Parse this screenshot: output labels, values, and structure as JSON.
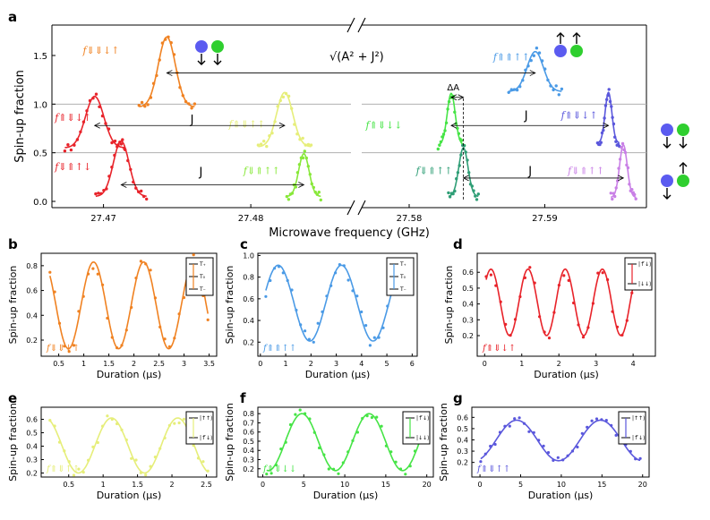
{
  "colors": {
    "red": "#e8232a",
    "orange": "#f08222",
    "yellow": "#e6ee7a",
    "green": "#46e446",
    "teal": "#2f9e76",
    "lime": "#88e83a",
    "blue": "#4a9ae6",
    "indigo": "#5a57dc",
    "violet": "#c980e6",
    "spin_blue": "#5b5bf0",
    "spin_green": "#2fcf2f"
  },
  "panel_labels": {
    "a": "a",
    "b": "b",
    "c": "c",
    "d": "d",
    "e": "e",
    "f": "f",
    "g": "g"
  },
  "chart_data": [
    {
      "panel": "a",
      "type": "scatter",
      "xlabel": "Microwave frequency (GHz)",
      "ylabel": "Spin-up fraction",
      "xlim_left": [
        27.4665,
        27.4868
      ],
      "xlim_right": [
        27.5765,
        27.5975
      ],
      "ylim": [
        -0.03,
        1.75
      ],
      "xticks_left": [
        27.47,
        27.48
      ],
      "xticks_left_labels": [
        "27.47",
        "27.48"
      ],
      "xticks_right": [
        27.58,
        27.59
      ],
      "xticks_right_labels": [
        "27.58",
        "27.59"
      ],
      "yticks": [
        0.0,
        0.5,
        1.0,
        1.5
      ],
      "ytick_labels": [
        "0.0",
        "0.5",
        "1.0",
        "1.5"
      ],
      "hlines": [
        0.5,
        1.0
      ],
      "annotations": {
        "J": "J",
        "sqrtAJ": "√(A² + J²)",
        "deltaA": "ΔA"
      },
      "series": [
        {
          "name": "f⇓⇓↓↑",
          "color": "orange",
          "side": "L",
          "center": 27.4743,
          "width": 0.00082,
          "base": 0.97,
          "amp": 0.72,
          "label_x": 27.4686,
          "label_y": 1.52
        },
        {
          "name": "f⇑⇓↓↑",
          "color": "red",
          "side": "L",
          "center": 27.4694,
          "width": 0.00088,
          "base": 0.55,
          "amp": 0.53,
          "label_x": 27.4667,
          "label_y": 0.83
        },
        {
          "name": "f⇓⇑↑↓",
          "color": "red",
          "side": "L",
          "center": 27.4712,
          "width": 0.00075,
          "base": 0.05,
          "amp": 0.57,
          "label_x": 27.4667,
          "label_y": 0.32
        },
        {
          "name": "f⇑⇓↑↑",
          "color": "yellow",
          "side": "L",
          "center": 27.4823,
          "width": 0.00078,
          "base": 0.56,
          "amp": 0.56,
          "label_x": 27.4785,
          "label_y": 0.76
        },
        {
          "name": "f⇓⇑↑↑",
          "color": "lime",
          "side": "L",
          "center": 27.4836,
          "width": 0.0005,
          "base": 0.05,
          "amp": 0.44,
          "label_x": 27.4795,
          "label_y": 0.28
        },
        {
          "name": "f⇑⇑↑↑",
          "color": "blue",
          "side": "R",
          "center": 27.5893,
          "width": 0.00085,
          "base": 1.13,
          "amp": 0.41,
          "label_x": 27.5862,
          "label_y": 1.45
        },
        {
          "name": "f⇑⇓↓↓",
          "color": "green",
          "side": "R",
          "center": 27.5831,
          "width": 0.00042,
          "base": 0.58,
          "amp": 0.53,
          "label_x": 27.5768,
          "label_y": 0.75
        },
        {
          "name": "f⇓⇑↑↑",
          "color": "teal",
          "side": "R",
          "center": 27.584,
          "width": 0.00048,
          "base": 0.05,
          "amp": 0.5,
          "label_x": 27.5805,
          "label_y": 0.28
        },
        {
          "name": "f⇑⇓↓↑",
          "color": "indigo",
          "side": "R",
          "center": 27.5947,
          "width": 0.00035,
          "base": 0.6,
          "amp": 0.52,
          "label_x": 27.5912,
          "label_y": 0.85
        },
        {
          "name": "f⇓⇑↑↑",
          "color": "violet",
          "side": "R",
          "center": 27.5958,
          "width": 0.0004,
          "base": 0.04,
          "amp": 0.54,
          "label_x": 27.5917,
          "label_y": 0.28
        }
      ]
    },
    {
      "panel": "b",
      "type": "line",
      "xlabel": "Duration (μs)",
      "ylabel": "Spin-up fraction",
      "xlim": [
        0.15,
        3.65
      ],
      "ylim": [
        0.07,
        0.9
      ],
      "xticks": [
        0.5,
        1,
        1.5,
        2,
        2.5,
        3,
        3.5
      ],
      "xtick_labels": [
        "0.5",
        "1",
        "1.5",
        "2",
        "2.5",
        "3",
        "3.5"
      ],
      "yticks": [
        0.2,
        0.4,
        0.6,
        0.8
      ],
      "ytick_labels": [
        "0.2",
        "0.4",
        "0.6",
        "0.8"
      ],
      "color": "orange",
      "freq": 1.0,
      "phase": 0.35,
      "mean": 0.48,
      "amp": 0.35,
      "decay": 0,
      "label": "f⇓⇓↓↑",
      "legend": [
        "T₊",
        "T₀",
        "T₋"
      ]
    },
    {
      "panel": "c",
      "type": "line",
      "xlabel": "Duration (μs)",
      "ylabel": "Spin-up fraction",
      "xlim": [
        -0.1,
        6.2
      ],
      "ylim": [
        0.07,
        1.02
      ],
      "xticks": [
        0,
        1,
        2,
        3,
        4,
        5,
        6
      ],
      "xtick_labels": [
        "0",
        "1",
        "2",
        "3",
        "4",
        "5",
        "6"
      ],
      "yticks": [
        0.2,
        0.4,
        0.6,
        0.8,
        1.0
      ],
      "ytick_labels": [
        "0.2",
        "0.4",
        "0.6",
        "0.8",
        "1.0"
      ],
      "color": "blue",
      "freq": 0.4,
      "phase": -0.2,
      "mean": 0.56,
      "amp": 0.35,
      "decay": 0,
      "label": "f⇑⇑↑↑",
      "legend": [
        "T₊",
        "T₀",
        "T₋"
      ]
    },
    {
      "panel": "d",
      "type": "line",
      "xlabel": "Duration (μs)",
      "ylabel": "Spin-up fraction",
      "xlim": [
        -0.2,
        4.6
      ],
      "ylim": [
        0.07,
        0.72
      ],
      "xticks": [
        0,
        1,
        2,
        3,
        4
      ],
      "xtick_labels": [
        "0",
        "1",
        "2",
        "3",
        "4"
      ],
      "yticks": [
        0.2,
        0.3,
        0.4,
        0.5,
        0.6
      ],
      "ytick_labels": [
        "0.2",
        "0.3",
        "0.4",
        "0.5",
        "0.6"
      ],
      "color": "red",
      "freq": 1.0,
      "phase": 0.5,
      "mean": 0.41,
      "amp": 0.21,
      "decay": 0,
      "label": "f⇑⇓↓↑",
      "legend": [
        "|↑̃↓⟩",
        "|↓↓⟩"
      ]
    },
    {
      "panel": "e",
      "type": "line",
      "xlabel": "Duration (μs)",
      "ylabel": "Spin-up fraction",
      "xlim": [
        0.1,
        2.65
      ],
      "ylim": [
        0.17,
        0.69
      ],
      "xticks": [
        0.5,
        1,
        1.5,
        2,
        2.5
      ],
      "xtick_labels": [
        "0.5",
        "1",
        "1.5",
        "2",
        "2.5"
      ],
      "yticks": [
        0.2,
        0.3,
        0.4,
        0.5,
        0.6
      ],
      "ytick_labels": [
        "0.2",
        "0.3",
        "0.4",
        "0.5",
        "0.6"
      ],
      "color": "yellow",
      "freq": 1.04,
      "phase": 0.52,
      "mean": 0.405,
      "amp": 0.205,
      "decay": 0,
      "label": "f⇑⇓↑↑",
      "legend": [
        "|↑↑⟩",
        "|↑̃↓⟩"
      ]
    },
    {
      "panel": "f",
      "type": "line",
      "xlabel": "Duration (μs)",
      "ylabel": "Spin-up fraction",
      "xlim": [
        -0.6,
        20.8
      ],
      "ylim": [
        0.11,
        0.87
      ],
      "xticks": [
        0,
        5,
        10,
        15,
        20
      ],
      "xtick_labels": [
        "0",
        "5",
        "10",
        "15",
        "20"
      ],
      "yticks": [
        0.2,
        0.3,
        0.4,
        0.5,
        0.6,
        0.7,
        0.8
      ],
      "ytick_labels": [
        "0.2",
        "0.3",
        "0.4",
        "0.5",
        "0.6",
        "0.7",
        "0.8"
      ],
      "color": "green",
      "freq": 0.122,
      "phase": 4.2,
      "mean": 0.49,
      "amp": 0.31,
      "decay": 0,
      "label": "f⇑⇓↓↓",
      "legend": [
        "|↑̃↓⟩",
        "|↓↓⟩"
      ]
    },
    {
      "panel": "g",
      "type": "line",
      "xlabel": "Duration (μs)",
      "ylabel": "Spin-up fraction",
      "xlim": [
        -1.0,
        20.8
      ],
      "ylim": [
        0.07,
        0.69
      ],
      "xticks": [
        0,
        5,
        10,
        15,
        20
      ],
      "xtick_labels": [
        "0",
        "5",
        "10",
        "15",
        "20"
      ],
      "yticks": [
        0.2,
        0.3,
        0.4,
        0.5,
        0.6
      ],
      "ytick_labels": [
        "0.2",
        "0.3",
        "0.4",
        "0.5",
        "0.6"
      ],
      "color": "indigo",
      "freq": 0.097,
      "phase": 5.1,
      "mean": 0.395,
      "amp": 0.18,
      "decay": 0,
      "label": "f⇑⇓↑↑",
      "legend": [
        "|↑↑⟩",
        "|↑̃↓⟩"
      ]
    }
  ]
}
